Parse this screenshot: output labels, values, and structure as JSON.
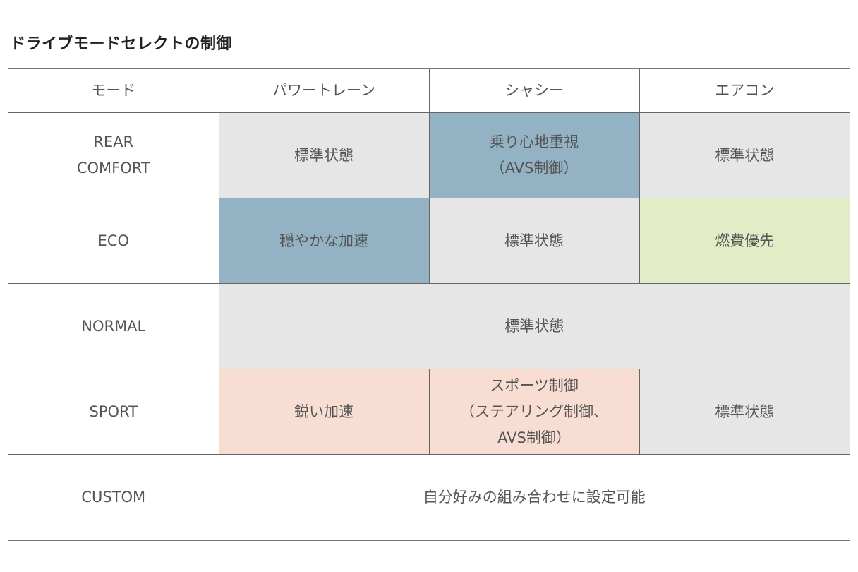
{
  "title": "ドライブモードセレクトの制御",
  "headers": [
    "モード",
    "パワートレーン",
    "シャシー",
    "エアコン"
  ],
  "colors": {
    "standard": "#e6e6e6",
    "blue": "#93b3c5",
    "green": "#e2edc8",
    "pink": "#f8ddd3"
  },
  "rows": {
    "rear_comfort": {
      "mode": [
        "REAR",
        "COMFORT"
      ],
      "powertrain": "標準状態",
      "chassis": [
        "乗り心地重視",
        "（AVS制御）"
      ],
      "aircon": "標準状態"
    },
    "eco": {
      "mode": "ECO",
      "powertrain": "穏やかな加速",
      "chassis": "標準状態",
      "aircon": "燃費優先"
    },
    "normal": {
      "mode": "NORMAL",
      "all": "標準状態"
    },
    "sport": {
      "mode": "SPORT",
      "powertrain": "鋭い加速",
      "chassis": [
        "スポーツ制御",
        "（ステアリング制御、",
        "AVS制御）"
      ],
      "aircon": "標準状態"
    },
    "custom": {
      "mode": "CUSTOM",
      "all": "自分好みの組み合わせに設定可能"
    }
  }
}
